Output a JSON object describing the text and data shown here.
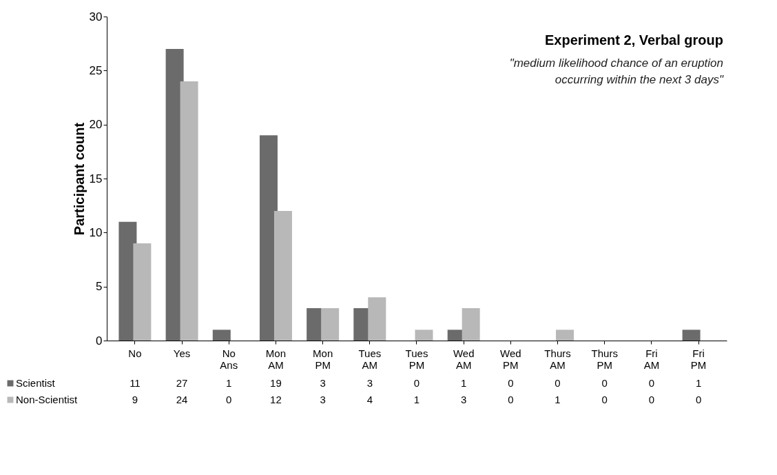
{
  "chart_data": {
    "type": "bar",
    "title": "Experiment 2, Verbal group",
    "subtitle": "\"medium likelihood chance of an eruption\noccurring within the next 3 days\"",
    "ylabel": "Participant count",
    "categories": [
      "No",
      "Yes",
      "No Ans",
      "Mon AM",
      "Mon PM",
      "Tues AM",
      "Tues PM",
      "Wed AM",
      "Wed PM",
      "Thurs AM",
      "Thurs PM",
      "Fri AM",
      "Fri PM"
    ],
    "series": [
      {
        "name": "Scientist",
        "color": "#6b6b6b",
        "values": [
          11,
          27,
          1,
          19,
          3,
          3,
          0,
          1,
          0,
          0,
          0,
          0,
          1
        ]
      },
      {
        "name": "Non-Scientist",
        "color": "#b8b8b8",
        "values": [
          9,
          24,
          0,
          12,
          3,
          4,
          1,
          3,
          0,
          1,
          0,
          0,
          0
        ]
      }
    ],
    "ylim": [
      0,
      30
    ],
    "yticks": [
      0,
      5,
      10,
      15,
      20,
      25,
      30
    ],
    "grid": false,
    "legend": "bottom",
    "data_labels": true
  }
}
